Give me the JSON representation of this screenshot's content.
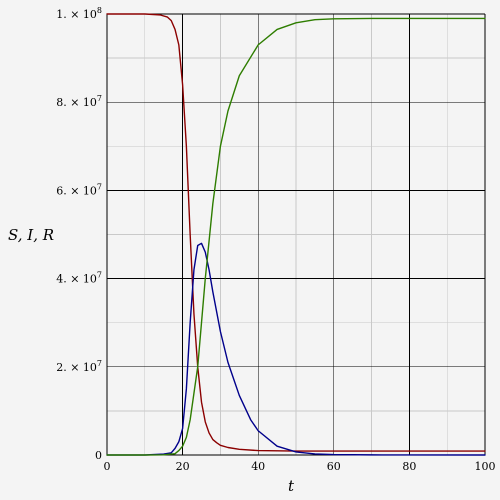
{
  "chart_data": {
    "type": "line",
    "title": "",
    "xlabel": "t",
    "ylabel": "S, I, R",
    "xlim": [
      0,
      100
    ],
    "ylim": [
      0,
      100000000
    ],
    "grid": true,
    "x_tick_labels": [
      "0",
      "20",
      "40",
      "60",
      "80",
      "100"
    ],
    "y_tick_labels": [
      {
        "mantissa": "0",
        "exponent": ""
      },
      {
        "mantissa": "2. × 10",
        "exponent": "7"
      },
      {
        "mantissa": "4. × 10",
        "exponent": "7"
      },
      {
        "mantissa": "6. × 10",
        "exponent": "7"
      },
      {
        "mantissa": "8. × 10",
        "exponent": "7"
      },
      {
        "mantissa": "1. × 10",
        "exponent": "8"
      }
    ],
    "series": [
      {
        "color": "#8b0000",
        "x": [
          0,
          10,
          14,
          16,
          17,
          18,
          19,
          20,
          21,
          22,
          23,
          24,
          25,
          26,
          27,
          28,
          29,
          30,
          32,
          35,
          40,
          50,
          60,
          80,
          100
        ],
        "y": [
          100000000,
          100000000,
          99800000,
          99300000,
          98500000,
          96500000,
          93000000,
          84000000,
          70000000,
          50000000,
          32000000,
          20000000,
          12000000,
          7500000,
          5000000,
          3500000,
          2800000,
          2200000,
          1700000,
          1300000,
          1000000,
          900000,
          900000,
          900000,
          900000
        ]
      },
      {
        "color": "#00008b",
        "x": [
          0,
          10,
          15,
          17,
          18,
          19,
          20,
          21,
          22,
          23,
          24,
          25,
          26,
          27,
          28,
          30,
          32,
          35,
          38,
          40,
          45,
          50,
          55,
          60,
          70,
          80,
          100
        ],
        "y": [
          0,
          0,
          200000,
          500000,
          1500000,
          3000000,
          6000000,
          15000000,
          30000000,
          42000000,
          47500000,
          48000000,
          46000000,
          42000000,
          37000000,
          28000000,
          21000000,
          13500000,
          8000000,
          5500000,
          2000000,
          700000,
          250000,
          100000,
          30000,
          10000,
          0
        ]
      },
      {
        "color": "#2e7d00",
        "x": [
          0,
          10,
          15,
          18,
          19,
          20,
          21,
          22,
          23,
          24,
          25,
          26,
          28,
          30,
          32,
          35,
          40,
          45,
          50,
          55,
          60,
          70,
          80,
          100
        ],
        "y": [
          0,
          0,
          50000,
          300000,
          1000000,
          2000000,
          4000000,
          8000000,
          14000000,
          20000000,
          30000000,
          40000000,
          57000000,
          70000000,
          78000000,
          86000000,
          93000000,
          96500000,
          98000000,
          98700000,
          98900000,
          99000000,
          99000000,
          99000000
        ]
      }
    ]
  }
}
